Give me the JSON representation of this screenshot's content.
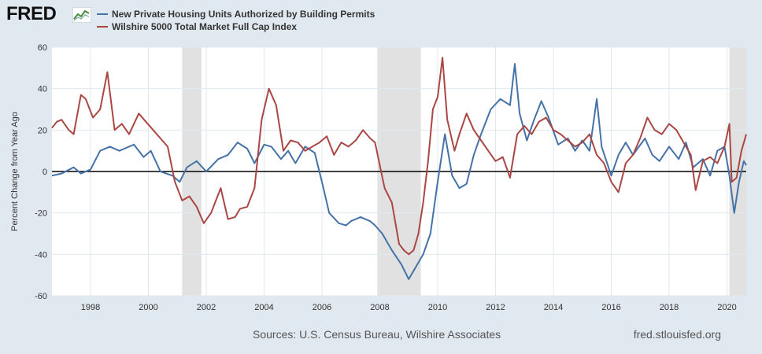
{
  "header": {
    "logo_text": "FRED",
    "logo_icon": "fred-trend-line-icon"
  },
  "footer": {
    "sources": "Sources: U.S. Census Bureau, Wilshire Associates",
    "url": "fred.stlouisfed.org"
  },
  "colors": {
    "series_1": "#4572a7",
    "series_2": "#aa4643",
    "recession": "#e1e1e1",
    "zero_line": "#000000",
    "grid": "#e1e9f0",
    "background": "#e1e9f0"
  },
  "chart_data": {
    "type": "line",
    "title": "",
    "xlabel": "",
    "ylabel": "Percent Change from Year Ago",
    "ylim": [
      -60,
      60
    ],
    "xlim": [
      "1996-09",
      "2020-09"
    ],
    "y_ticks": [
      -60,
      -40,
      -20,
      0,
      20,
      40,
      60
    ],
    "x_ticks": [
      "1998",
      "2000",
      "2002",
      "2004",
      "2006",
      "2008",
      "2010",
      "2012",
      "2014",
      "2016",
      "2018",
      "2020"
    ],
    "legend_position": "top-left",
    "grid": true,
    "recessions": [
      {
        "start": "2001-03",
        "end": "2001-11"
      },
      {
        "start": "2007-12",
        "end": "2009-06"
      },
      {
        "start": "2020-02",
        "end": "2020-09"
      }
    ],
    "series": [
      {
        "name": "New Private Housing Units Authorized by Building Permits",
        "x": [
          "1996-09",
          "1997-01",
          "1997-06",
          "1997-09",
          "1998-01",
          "1998-05",
          "1998-09",
          "1999-01",
          "1999-03",
          "1999-07",
          "1999-11",
          "2000-02",
          "2000-06",
          "2000-11",
          "2001-02",
          "2001-05",
          "2001-09",
          "2002-01",
          "2002-06",
          "2002-10",
          "2003-02",
          "2003-06",
          "2003-09",
          "2004-01",
          "2004-04",
          "2004-08",
          "2004-11",
          "2005-02",
          "2005-06",
          "2005-10",
          "2006-01",
          "2006-04",
          "2006-08",
          "2006-11",
          "2007-01",
          "2007-05",
          "2007-09",
          "2007-11",
          "2008-02",
          "2008-06",
          "2008-10",
          "2009-01",
          "2009-04",
          "2009-07",
          "2009-10",
          "2010-01",
          "2010-04",
          "2010-07",
          "2010-10",
          "2011-01",
          "2011-04",
          "2011-07",
          "2011-11",
          "2012-03",
          "2012-07",
          "2012-09",
          "2012-11",
          "2013-02",
          "2013-05",
          "2013-08",
          "2013-11",
          "2014-03",
          "2014-07",
          "2014-10",
          "2015-01",
          "2015-04",
          "2015-07",
          "2015-09",
          "2016-01",
          "2016-04",
          "2016-07",
          "2016-10",
          "2017-03",
          "2017-06",
          "2017-09",
          "2018-01",
          "2018-05",
          "2018-08",
          "2018-11",
          "2019-03",
          "2019-06",
          "2019-09",
          "2019-12",
          "2020-02",
          "2020-04",
          "2020-06",
          "2020-08",
          "2020-09"
        ],
        "values": [
          -2,
          -1,
          2,
          -1,
          1,
          10,
          12,
          10,
          11,
          13,
          7,
          10,
          0,
          -2,
          -5,
          2,
          5,
          0,
          6,
          8,
          14,
          11,
          4,
          13,
          12,
          6,
          10,
          4,
          12,
          9,
          -5,
          -20,
          -25,
          -26,
          -24,
          -22,
          -24,
          -26,
          -30,
          -38,
          -45,
          -52,
          -46,
          -40,
          -30,
          -5,
          18,
          -2,
          -8,
          -6,
          8,
          18,
          30,
          35,
          32,
          52,
          28,
          15,
          25,
          34,
          26,
          13,
          16,
          10,
          15,
          10,
          35,
          12,
          -2,
          8,
          14,
          8,
          16,
          8,
          5,
          12,
          6,
          14,
          2,
          6,
          -2,
          10,
          12,
          -2,
          -20,
          -5,
          5,
          3
        ],
        "color": "#4572a7"
      },
      {
        "name": "Wilshire 5000 Total Market Full Cap Index",
        "x": [
          "1996-09",
          "1996-11",
          "1997-01",
          "1997-04",
          "1997-06",
          "1997-09",
          "1997-11",
          "1998-02",
          "1998-05",
          "1998-08",
          "1998-11",
          "1999-02",
          "1999-05",
          "1999-09",
          "1999-12",
          "2000-03",
          "2000-06",
          "2000-09",
          "2000-12",
          "2001-03",
          "2001-06",
          "2001-09",
          "2001-12",
          "2002-03",
          "2002-07",
          "2002-10",
          "2003-01",
          "2003-03",
          "2003-06",
          "2003-09",
          "2003-12",
          "2004-03",
          "2004-06",
          "2004-09",
          "2004-12",
          "2005-03",
          "2005-06",
          "2005-09",
          "2005-12",
          "2006-03",
          "2006-06",
          "2006-09",
          "2006-12",
          "2007-03",
          "2007-06",
          "2007-09",
          "2007-11",
          "2008-01",
          "2008-03",
          "2008-06",
          "2008-09",
          "2008-11",
          "2009-01",
          "2009-03",
          "2009-05",
          "2009-07",
          "2009-09",
          "2009-11",
          "2010-01",
          "2010-03",
          "2010-05",
          "2010-08",
          "2010-10",
          "2011-01",
          "2011-04",
          "2011-07",
          "2011-10",
          "2012-01",
          "2012-04",
          "2012-07",
          "2012-10",
          "2013-01",
          "2013-04",
          "2013-07",
          "2013-10",
          "2014-01",
          "2014-04",
          "2014-07",
          "2014-10",
          "2015-01",
          "2015-04",
          "2015-07",
          "2015-10",
          "2016-01",
          "2016-04",
          "2016-07",
          "2016-10",
          "2017-01",
          "2017-04",
          "2017-07",
          "2017-10",
          "2018-01",
          "2018-04",
          "2018-07",
          "2018-10",
          "2018-12",
          "2019-03",
          "2019-06",
          "2019-09",
          "2019-12",
          "2020-02",
          "2020-03",
          "2020-05",
          "2020-07",
          "2020-09"
        ],
        "values": [
          21,
          24,
          25,
          20,
          18,
          37,
          35,
          26,
          30,
          48,
          20,
          23,
          18,
          28,
          24,
          20,
          16,
          12,
          -5,
          -14,
          -12,
          -17,
          -25,
          -20,
          -8,
          -23,
          -22,
          -18,
          -17,
          -8,
          25,
          40,
          32,
          10,
          15,
          14,
          10,
          12,
          14,
          17,
          8,
          14,
          12,
          15,
          20,
          16,
          14,
          3,
          -8,
          -15,
          -35,
          -38,
          -40,
          -38,
          -30,
          -15,
          5,
          30,
          36,
          55,
          25,
          10,
          18,
          28,
          20,
          15,
          10,
          5,
          7,
          -3,
          18,
          22,
          18,
          24,
          26,
          20,
          18,
          15,
          12,
          14,
          18,
          8,
          4,
          -5,
          -10,
          4,
          8,
          16,
          26,
          20,
          18,
          23,
          20,
          14,
          8,
          -9,
          5,
          7,
          4,
          12,
          23,
          -5,
          -3,
          10,
          18
        ],
        "color": "#aa4643"
      }
    ]
  }
}
